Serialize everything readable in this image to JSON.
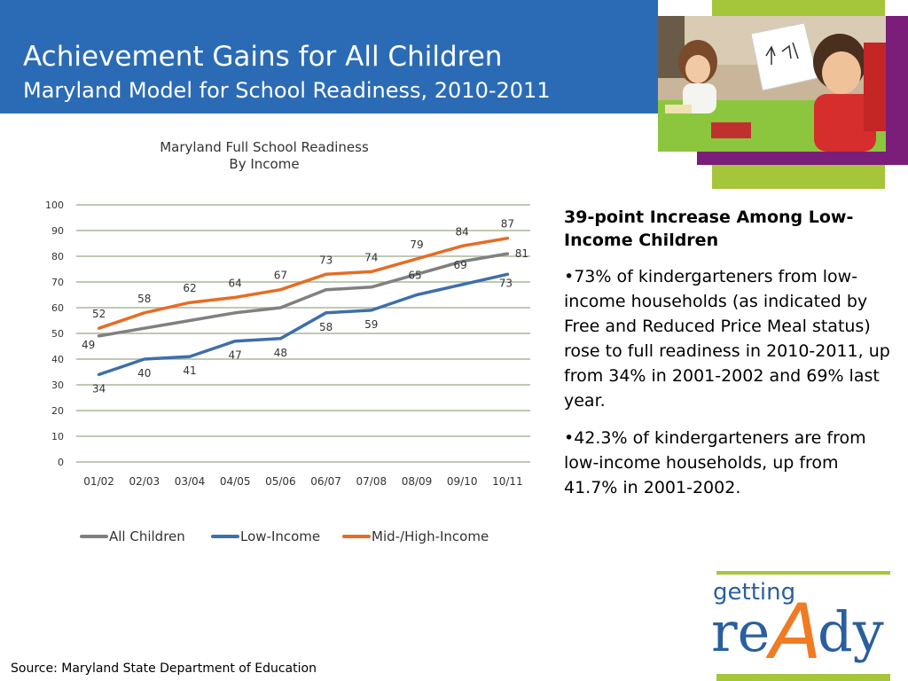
{
  "header": {
    "title": "Achievement Gains for All Children",
    "subtitle": "Maryland Model for School Readiness, 2010-2011"
  },
  "chart_data": {
    "type": "line",
    "title": "Maryland Full School Readiness",
    "subtitle": "By Income",
    "categories": [
      "01/02",
      "02/03",
      "03/04",
      "04/05",
      "05/06",
      "06/07",
      "07/08",
      "08/09",
      "09/10",
      "10/11"
    ],
    "y_ticks": [
      "0",
      "10",
      "20",
      "30",
      "40",
      "50",
      "60",
      "70",
      "80",
      "90",
      "100"
    ],
    "ylim": [
      0,
      100
    ],
    "grid": true,
    "legend_position": "bottom",
    "series": [
      {
        "name": "All Children",
        "color": "#808080",
        "values": [
          49,
          52,
          55,
          58,
          60,
          67,
          68,
          73,
          78,
          81
        ],
        "labels": [
          "49",
          "",
          "",
          "",
          "",
          "",
          "",
          "",
          "",
          "81"
        ]
      },
      {
        "name": "Low-Income",
        "color": "#3e6fa8",
        "values": [
          34,
          40,
          41,
          47,
          48,
          58,
          59,
          65,
          69,
          73
        ],
        "labels": [
          "34",
          "40",
          "41",
          "47",
          "48",
          "58",
          "59",
          "65",
          "69",
          "73"
        ]
      },
      {
        "name": "Mid-/High-Income",
        "color": "#e56d25",
        "values": [
          52,
          58,
          62,
          64,
          67,
          73,
          74,
          79,
          84,
          87
        ],
        "labels": [
          "52",
          "58",
          "62",
          "64",
          "67",
          "73",
          "74",
          "79",
          "84",
          "87"
        ]
      }
    ]
  },
  "bullets": {
    "heading": "39-point Increase Among Low-Income Children",
    "items": [
      "•73% of kindergarteners from low-income households (as indicated by Free and Reduced Price Meal status) rose to full readiness in 2010-2011, up from 34% in 2001-2002 and 69% last year.",
      "•42.3% of kindergarteners are from low-income households, up from 41.7% in 2001-2002."
    ]
  },
  "footer": {
    "source": "Source: Maryland State Department of Education"
  },
  "logo": {
    "word1": "getting",
    "word2_a": "re",
    "word2_b": "A",
    "word2_c": "dy"
  },
  "colors": {
    "title_bar": "#2b6bb5",
    "accent_green": "#a5c53a",
    "accent_purple": "#7a1e79",
    "logo_blue": "#2a5f9e",
    "logo_orange": "#f07b23"
  },
  "icons": {
    "photo": "children-drawing-photo"
  }
}
